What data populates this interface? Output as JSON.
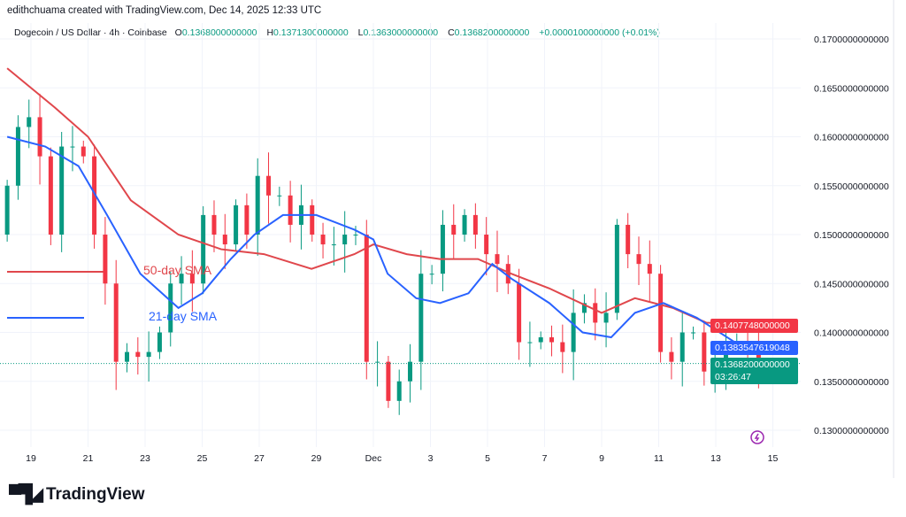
{
  "credit": "edithchuama created with TradingView.com, Dec 14, 2025 12:33 UTC",
  "legend": {
    "symbol": "Dogecoin / US Dollar · 4h · Coinbase",
    "o_label": "O",
    "o": "0.1368000000000",
    "h_label": "H",
    "h": "0.1371300000000",
    "l_label": "L",
    "l": "0.1363000000000",
    "c_label": "C",
    "c": "0.1368200000000",
    "change": "+0.0000100000000 (+0.01%)"
  },
  "price_tags": {
    "sma50": "0.1407748000000",
    "sma21": "0.1383547619048",
    "last": "0.1368200000000",
    "countdown": "03:26:47"
  },
  "logo": "TradingView",
  "colors": {
    "up": "#089981",
    "down": "#f23645",
    "sma50": "#e0474c",
    "sma21": "#2962ff",
    "grid": "#f0f3fa"
  },
  "chart_data": {
    "type": "candlestick",
    "title": "Dogecoin / US Dollar · 4h · Coinbase",
    "ylim": [
      0.128,
      0.172
    ],
    "y_ticks": [
      "0.1700000000000",
      "0.1650000000000",
      "0.1600000000000",
      "0.1550000000000",
      "0.1500000000000",
      "0.1450000000000",
      "0.1400000000000",
      "0.1350000000000",
      "0.1300000000000"
    ],
    "y_tick_values": [
      0.17,
      0.165,
      0.16,
      0.155,
      0.15,
      0.145,
      0.14,
      0.135,
      0.13
    ],
    "x_ticks": [
      [
        "11-19",
        "19"
      ],
      [
        "11-21",
        "21"
      ],
      [
        "11-23",
        "23"
      ],
      [
        "11-25",
        "25"
      ],
      [
        "11-27",
        "27"
      ],
      [
        "11-29",
        "29"
      ],
      [
        "12-01",
        "Dec"
      ],
      [
        "12-03",
        "3"
      ],
      [
        "12-05",
        "5"
      ],
      [
        "12-07",
        "7"
      ],
      [
        "12-09",
        "9"
      ],
      [
        "12-11",
        "11"
      ],
      [
        "12-13",
        "13"
      ],
      [
        "12-15",
        "15"
      ]
    ],
    "first_open": 0.15,
    "closes": [
      0.155,
      0.161,
      0.162,
      0.158,
      0.15,
      0.159,
      0.159,
      0.158,
      0.15,
      0.145,
      0.137,
      0.138,
      0.1375,
      0.138,
      0.14,
      0.145,
      0.146,
      0.145,
      0.152,
      0.15,
      0.149,
      0.153,
      0.15,
      0.156,
      0.154,
      0.154,
      0.151,
      0.153,
      0.15,
      0.149,
      0.149,
      0.15,
      0.15,
      0.137,
      0.137,
      0.133,
      0.135,
      0.137,
      0.146,
      0.146,
      0.151,
      0.15,
      0.152,
      0.15,
      0.148,
      0.147,
      0.145,
      0.139,
      0.139,
      0.1395,
      0.139,
      0.138,
      0.142,
      0.143,
      0.141,
      0.142,
      0.151,
      0.148,
      0.147,
      0.146,
      0.138,
      0.137,
      0.14,
      0.14,
      0.136,
      0.137,
      0.139,
      0.139,
      0.138,
      0.1368
    ],
    "first_time": "11-18 04:00",
    "last_time": "12-14 12:00",
    "series": [
      {
        "name": "50-day SMA",
        "color": "#e0474c",
        "points": [
          [
            "11-18 04:00",
            0.167
          ],
          [
            "11-19 20:00",
            0.163
          ],
          [
            "11-21 00:00",
            0.16
          ],
          [
            "11-22 12:00",
            0.1535
          ],
          [
            "11-24 04:00",
            0.15
          ],
          [
            "11-25 16:00",
            0.1485
          ],
          [
            "11-27 04:00",
            0.148
          ],
          [
            "11-28 20:00",
            0.1465
          ],
          [
            "11-30 08:00",
            0.148
          ],
          [
            "12-01 00:00",
            0.149
          ],
          [
            "12-02 04:00",
            0.148
          ],
          [
            "12-03 08:00",
            0.1475
          ],
          [
            "12-04 16:00",
            0.1475
          ],
          [
            "12-05 20:00",
            0.146
          ],
          [
            "12-07 04:00",
            0.1445
          ],
          [
            "12-09 00:00",
            0.142
          ],
          [
            "12-10 04:00",
            0.1435
          ],
          [
            "12-11 12:00",
            0.1425
          ],
          [
            "12-12 16:00",
            0.141
          ],
          [
            "12-14 12:00",
            0.1408
          ]
        ]
      },
      {
        "name": "21-day SMA",
        "color": "#2962ff",
        "points": [
          [
            "11-18 04:00",
            0.16
          ],
          [
            "11-19 12:00",
            0.159
          ],
          [
            "11-20 16:00",
            0.157
          ],
          [
            "11-21 16:00",
            0.152
          ],
          [
            "11-22 20:00",
            0.146
          ],
          [
            "11-24 04:00",
            0.1425
          ],
          [
            "11-25 00:00",
            0.144
          ],
          [
            "11-26 00:00",
            0.1475
          ],
          [
            "11-26 20:00",
            0.15
          ],
          [
            "11-27 20:00",
            0.152
          ],
          [
            "11-29 00:00",
            0.152
          ],
          [
            "11-30 08:00",
            0.1505
          ],
          [
            "12-01 00:00",
            0.1495
          ],
          [
            "12-01 12:00",
            0.146
          ],
          [
            "12-02 12:00",
            0.1435
          ],
          [
            "12-03 08:00",
            0.143
          ],
          [
            "12-04 08:00",
            0.144
          ],
          [
            "12-05 04:00",
            0.147
          ],
          [
            "12-05 20:00",
            0.1455
          ],
          [
            "12-07 04:00",
            0.143
          ],
          [
            "12-08 08:00",
            0.14
          ],
          [
            "12-09 08:00",
            0.1395
          ],
          [
            "12-10 04:00",
            0.142
          ],
          [
            "12-11 04:00",
            0.143
          ],
          [
            "12-12 08:00",
            0.1415
          ],
          [
            "12-13 16:00",
            0.139
          ],
          [
            "12-14 12:00",
            0.1383
          ]
        ]
      }
    ],
    "last_price": 0.13682,
    "grid": true
  }
}
